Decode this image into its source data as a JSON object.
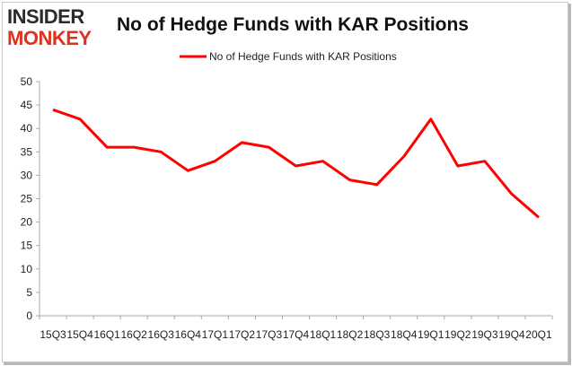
{
  "header": {
    "logo_line1": "INSIDER",
    "logo_line2": "MONKEY",
    "logo_colors": {
      "line1": "#2b2b2b",
      "line2": "#e0301e"
    }
  },
  "chart_data": {
    "type": "line",
    "title": "No of Hedge Funds with KAR Positions",
    "xlabel": "",
    "ylabel": "",
    "categories": [
      "15Q3",
      "15Q4",
      "16Q1",
      "16Q2",
      "16Q3",
      "16Q4",
      "17Q1",
      "17Q2",
      "17Q3",
      "17Q4",
      "18Q1",
      "18Q2",
      "18Q3",
      "18Q4",
      "19Q1",
      "19Q2",
      "19Q3",
      "19Q4",
      "20Q1"
    ],
    "series": [
      {
        "name": "No of Hedge Funds with KAR Positions",
        "color": "#ff0000",
        "values": [
          44,
          42,
          36,
          36,
          35,
          31,
          33,
          37,
          36,
          32,
          33,
          29,
          28,
          34,
          42,
          32,
          33,
          26,
          21
        ]
      }
    ],
    "ylim": [
      0,
      50
    ],
    "yticks": [
      0,
      5,
      10,
      15,
      20,
      25,
      30,
      35,
      40,
      45,
      50
    ],
    "grid": false,
    "legend_position": "top-center",
    "axis_color": "#aaaaaa"
  }
}
